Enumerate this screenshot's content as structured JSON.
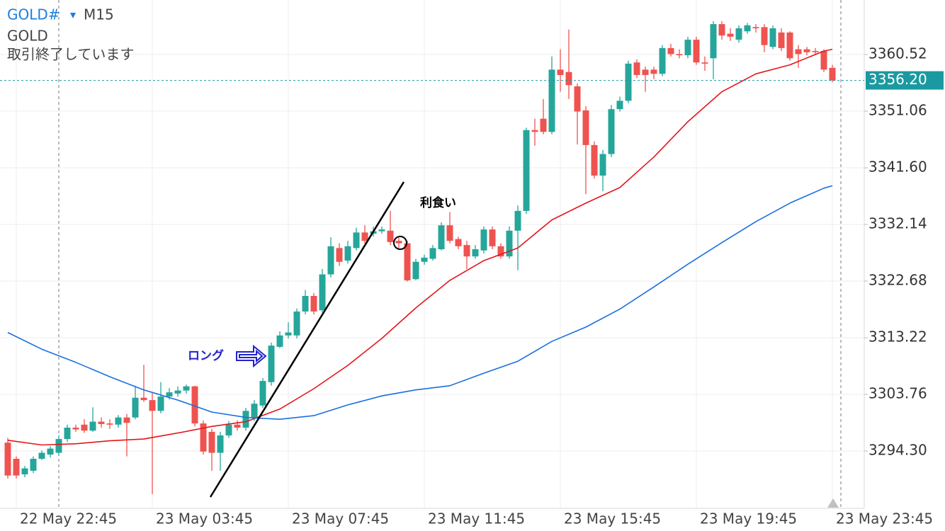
{
  "header": {
    "symbol": "GOLD#",
    "timeframe": "M15",
    "name": "GOLD",
    "status": "取引終了しています"
  },
  "chart_data": {
    "type": "candlestick",
    "categories": [
      null,
      "22 May 22:45",
      null,
      null,
      null,
      null,
      null,
      null,
      null,
      null,
      null,
      null,
      null,
      null,
      null,
      null,
      null,
      "23 May 03:45",
      null,
      null,
      null,
      null,
      null,
      null,
      null,
      null,
      null,
      null,
      null,
      null,
      null,
      null,
      null,
      "23 May 07:45",
      null,
      null,
      null,
      null,
      null,
      null,
      null,
      null,
      null,
      null,
      null,
      null,
      null,
      null,
      null,
      "23 May 11:45",
      null,
      null,
      null,
      null,
      null,
      null,
      null,
      null,
      null,
      null,
      null,
      null,
      null,
      null,
      null,
      "23 May 15:45",
      null,
      null,
      null,
      null,
      null,
      null,
      null,
      null,
      null,
      null,
      null,
      null,
      null,
      null,
      null,
      "23 May 19:45",
      null,
      null,
      null,
      null,
      null,
      null,
      null,
      null,
      null,
      null,
      null,
      null,
      null,
      null,
      null,
      "23 May 23:45"
    ],
    "open": [
      3295.7,
      3293.0,
      3290.4,
      3291.0,
      3293.0,
      3293.7,
      3294.0,
      3296.3,
      3298.2,
      3298.7,
      3297.7,
      3299.2,
      3298.9,
      3298.7,
      3299.9,
      3299.9,
      3303.2,
      3302.8,
      3301.0,
      3303.4,
      3303.9,
      3304.4,
      3305.1,
      3298.9,
      3297.5,
      3294.0,
      3296.9,
      3298.7,
      3298.2,
      3299.9,
      3301.9,
      3305.8,
      3311.7,
      3313.6,
      3313.6,
      3317.6,
      3320.2,
      3317.8,
      3323.8,
      3328.2,
      3326.1,
      3328.2,
      3330.8,
      3330.6,
      3331.0,
      3331.1,
      3329.4,
      3329.0,
      3323.0,
      3325.9,
      3326.4,
      3328.0,
      3332.0,
      3329.7,
      3328.7,
      3326.8,
      3327.8,
      3331.3,
      3328.5,
      3326.8,
      3331.1,
      3334.4,
      3347.9,
      3349.8,
      3347.6,
      3358.0,
      3357.6,
      3355.2,
      3351.2,
      3345.4,
      3340.3,
      3343.9,
      3351.4,
      3352.8,
      3359.2,
      3358.0,
      3358.0,
      3357.3,
      3361.6,
      3360.6,
      3360.4,
      3363.0,
      3359.2,
      3359.9,
      3365.6,
      3364.0,
      3363.0,
      3364.4,
      3365.1,
      3365.1,
      3361.8,
      3364.2,
      3364.2,
      3361.4,
      3361.4,
      3361.1,
      3361.1,
      3358.3
    ],
    "high": [
      3296.5,
      3293.4,
      3291.8,
      3293.4,
      3294.4,
      3295.1,
      3296.9,
      3298.7,
      3298.7,
      3299.6,
      3301.6,
      3299.9,
      3299.6,
      3300.3,
      3300.5,
      3305.2,
      3308.7,
      3304.0,
      3305.8,
      3304.8,
      3305.1,
      3305.4,
      3305.2,
      3299.4,
      3298.0,
      3297.5,
      3299.3,
      3299.4,
      3301.5,
      3302.8,
      3306.5,
      3312.4,
      3314.3,
      3315.8,
      3318.1,
      3321.2,
      3320.7,
      3324.7,
      3330.0,
      3329.0,
      3329.4,
      3331.6,
      3332.0,
      3331.8,
      3331.8,
      3334.4,
      3329.9,
      3329.4,
      3326.4,
      3327.1,
      3328.7,
      3332.5,
      3334.2,
      3330.1,
      3329.4,
      3328.7,
      3331.8,
      3331.8,
      3329.0,
      3331.8,
      3335.3,
      3348.3,
      3349.8,
      3353.1,
      3360.2,
      3361.4,
      3364.7,
      3355.7,
      3351.9,
      3346.0,
      3344.6,
      3352.1,
      3353.5,
      3359.5,
      3359.7,
      3358.5,
      3358.5,
      3362.1,
      3362.3,
      3361.4,
      3363.5,
      3363.5,
      3360.2,
      3366.1,
      3366.1,
      3364.9,
      3365.4,
      3365.8,
      3365.6,
      3365.6,
      3365.4,
      3364.9,
      3364.4,
      3362.1,
      3361.8,
      3361.6,
      3361.4,
      3358.8
    ],
    "low": [
      3289.7,
      3289.7,
      3289.9,
      3290.6,
      3292.8,
      3293.2,
      3293.5,
      3295.8,
      3297.5,
      3297.3,
      3297.5,
      3298.2,
      3298.0,
      3298.2,
      3293.4,
      3299.6,
      3302.5,
      3287.1,
      3300.6,
      3302.9,
      3303.4,
      3303.9,
      3298.4,
      3293.7,
      3291.0,
      3291.0,
      3296.5,
      3297.7,
      3297.7,
      3299.3,
      3301.5,
      3305.2,
      3311.5,
      3313.1,
      3313.1,
      3317.1,
      3317.1,
      3317.4,
      3323.3,
      3325.2,
      3325.6,
      3327.8,
      3329.0,
      3330.1,
      3330.6,
      3328.7,
      3328.2,
      3322.6,
      3322.8,
      3325.4,
      3326.1,
      3327.8,
      3329.0,
      3328.0,
      3324.7,
      3326.4,
      3327.3,
      3328.0,
      3326.4,
      3326.4,
      3324.5,
      3333.9,
      3345.3,
      3347.2,
      3347.2,
      3354.3,
      3353.1,
      3345.5,
      3337.2,
      3339.8,
      3337.7,
      3343.4,
      3351.0,
      3352.4,
      3356.6,
      3354.3,
      3356.4,
      3356.9,
      3360.2,
      3359.9,
      3359.9,
      3358.8,
      3357.8,
      3356.4,
      3363.0,
      3362.8,
      3362.5,
      3364.0,
      3364.2,
      3360.9,
      3361.4,
      3361.1,
      3359.5,
      3358.3,
      3360.4,
      3360.4,
      3357.6,
      3355.9
    ],
    "close": [
      3290.2,
      3290.2,
      3291.4,
      3293.0,
      3294.0,
      3294.7,
      3296.3,
      3298.2,
      3297.9,
      3297.7,
      3299.2,
      3298.8,
      3298.7,
      3299.9,
      3299.0,
      3303.2,
      3302.8,
      3301.0,
      3303.4,
      3304.1,
      3304.4,
      3305.1,
      3298.9,
      3294.2,
      3294.0,
      3296.9,
      3298.7,
      3298.2,
      3301.0,
      3302.2,
      3306.0,
      3311.9,
      3313.6,
      3314.1,
      3317.6,
      3320.2,
      3317.6,
      3323.8,
      3328.5,
      3325.9,
      3328.5,
      3330.8,
      3329.4,
      3331.0,
      3331.3,
      3329.2,
      3329.0,
      3322.8,
      3325.9,
      3326.6,
      3328.2,
      3332.0,
      3329.4,
      3328.5,
      3326.8,
      3328.0,
      3331.3,
      3328.5,
      3326.8,
      3331.1,
      3334.4,
      3347.9,
      3347.6,
      3347.6,
      3358.0,
      3357.1,
      3355.4,
      3351.0,
      3345.4,
      3340.3,
      3343.9,
      3351.4,
      3352.8,
      3359.0,
      3357.1,
      3357.1,
      3357.3,
      3361.6,
      3360.6,
      3360.4,
      3363.0,
      3359.2,
      3359.0,
      3365.6,
      3363.7,
      3363.5,
      3364.9,
      3365.4,
      3364.9,
      3362.1,
      3364.9,
      3361.6,
      3359.9,
      3360.6,
      3360.9,
      3360.9,
      3358.0,
      3356.2
    ],
    "up_color": "#26a69a",
    "down_color": "#ef5350",
    "series": [
      {
        "color": "#e3161b",
        "x": [
          0,
          4,
          8,
          12,
          16,
          20,
          24,
          28,
          32,
          36,
          40,
          44,
          48,
          52,
          56,
          60,
          64,
          68,
          72,
          76,
          80,
          84,
          88,
          92,
          96,
          97
        ],
        "values": [
          3296.1,
          3295.3,
          3295.5,
          3296.0,
          3296.3,
          3297.3,
          3298.4,
          3299.2,
          3301.3,
          3304.7,
          3308.6,
          3313.1,
          3318.2,
          3322.8,
          3326.1,
          3328.2,
          3332.9,
          3335.7,
          3338.3,
          3343.4,
          3349.3,
          3354.3,
          3357.3,
          3358.8,
          3361.1,
          3361.4
        ]
      },
      {
        "color": "#1a6fdf",
        "x": [
          0,
          4,
          8,
          12,
          16,
          20,
          24,
          28,
          32,
          36,
          40,
          44,
          48,
          52,
          56,
          60,
          64,
          68,
          72,
          76,
          80,
          84,
          88,
          92,
          96,
          97
        ],
        "values": [
          3314.1,
          3311.3,
          3309.1,
          3306.7,
          3304.5,
          3302.8,
          3300.8,
          3299.9,
          3299.6,
          3300.2,
          3302.0,
          3303.5,
          3304.5,
          3305.2,
          3307.3,
          3309.3,
          3312.6,
          3315.0,
          3318.0,
          3321.7,
          3325.5,
          3329.1,
          3332.6,
          3335.7,
          3338.2,
          3338.6
        ]
      }
    ],
    "ylim": [
      3284.72,
      3369.63
    ],
    "yticks": [
      3360.52,
      3351.06,
      {
        "value": 3341.6,
        "label": "3341.60"
      },
      3332.14,
      3322.68,
      3313.22,
      3303.76,
      {
        "value": 3294.3,
        "label": "3294.30"
      }
    ],
    "current_price": {
      "value": 3356.2,
      "label": "3356.20"
    },
    "current_price_color": "#1a9aa0",
    "grid": true,
    "annotations": [
      {
        "text": "ロング",
        "color": "#2222cc"
      },
      {
        "text": "利食い",
        "color": "#000000"
      }
    ]
  }
}
